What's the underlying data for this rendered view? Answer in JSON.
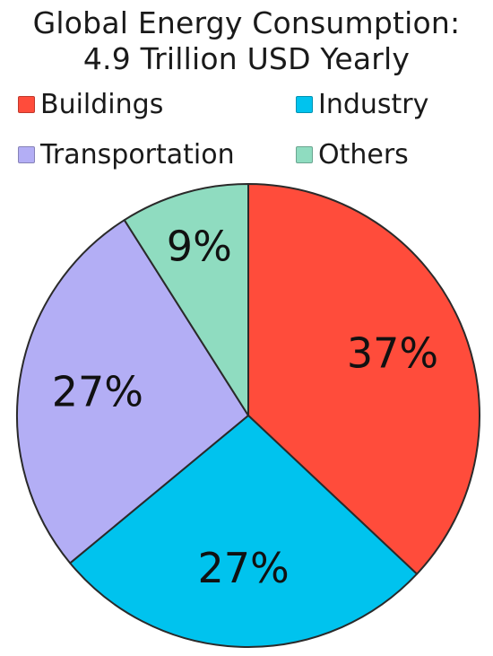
{
  "chart_data": {
    "type": "pie",
    "title": "Global Energy Consumption:",
    "subtitle": "4.9 Trillion USD Yearly",
    "legend_position": "top",
    "slices": [
      {
        "label": "Buildings",
        "value": 37,
        "value_label": "37%",
        "color": "#ff4c3b"
      },
      {
        "label": "Industry",
        "value": 27,
        "value_label": "27%",
        "color": "#00c3ee"
      },
      {
        "label": "Transportation",
        "value": 27,
        "value_label": "27%",
        "color": "#b3aef5"
      },
      {
        "label": "Others",
        "value": 9,
        "value_label": "9%",
        "color": "#8fdcc0"
      }
    ]
  }
}
